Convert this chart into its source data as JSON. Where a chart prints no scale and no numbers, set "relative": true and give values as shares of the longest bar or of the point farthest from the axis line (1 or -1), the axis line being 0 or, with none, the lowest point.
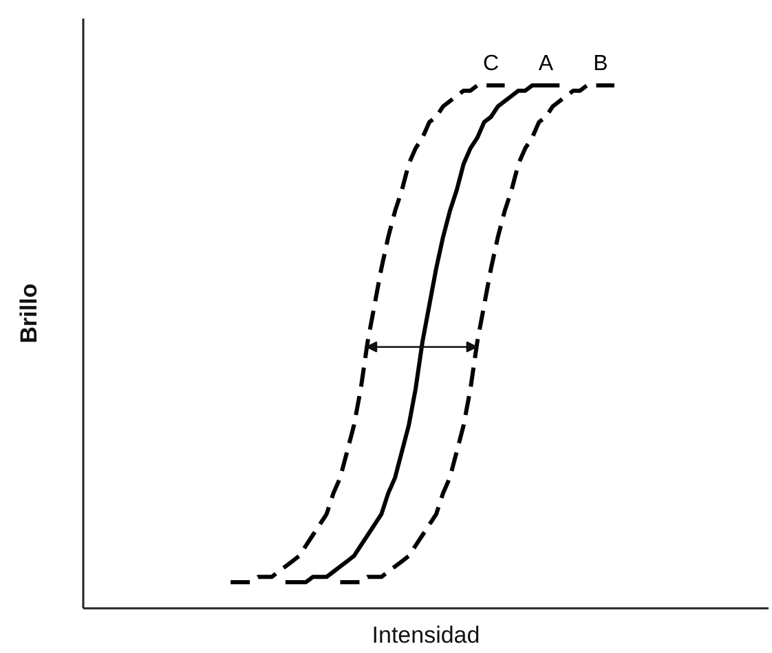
{
  "chart_data": {
    "type": "line",
    "xlabel": "Intensidad",
    "ylabel": "Brillo",
    "relative": true,
    "tick_labels": false,
    "categories": [
      null,
      null,
      null,
      null,
      null,
      null,
      null,
      null,
      null,
      null,
      null,
      null,
      null,
      null,
      null,
      null,
      null,
      null,
      null,
      null,
      null,
      null,
      null,
      null,
      null,
      null,
      null,
      null,
      null,
      null,
      null,
      null,
      null,
      null,
      null,
      null,
      null,
      null,
      null,
      null,
      null,
      null,
      null,
      null,
      null,
      null,
      null,
      null,
      null,
      null,
      null,
      null,
      null,
      null,
      null,
      null,
      null,
      null,
      null,
      null,
      null,
      null,
      null,
      null,
      null,
      null,
      null,
      null,
      null,
      null,
      null,
      null,
      null,
      null,
      null,
      null,
      null,
      null,
      null,
      null,
      null,
      null,
      null,
      null,
      null,
      null,
      null,
      null,
      null,
      null,
      null,
      null,
      null,
      null,
      null,
      null,
      null,
      null,
      null,
      null
    ],
    "series": [
      {
        "name": "C",
        "color": "#000000",
        "line_style": "dashed",
        "values": [
          null,
          null,
          null,
          null,
          null,
          null,
          null,
          null,
          null,
          null,
          null,
          null,
          null,
          null,
          null,
          null,
          null,
          null,
          null,
          null,
          null,
          0.05,
          0.05,
          0.05,
          0.05,
          0.06,
          0.06,
          0.06,
          0.07,
          0.08,
          0.09,
          0.1,
          0.12,
          0.14,
          0.16,
          0.18,
          0.22,
          0.25,
          0.3,
          0.35,
          0.42,
          0.51,
          0.58,
          0.65,
          0.71,
          0.76,
          0.8,
          0.85,
          0.88,
          0.9,
          0.93,
          0.94,
          0.96,
          0.97,
          0.98,
          0.99,
          0.99,
          1,
          1,
          1,
          1,
          1,
          null,
          null,
          null,
          null,
          null,
          null,
          null,
          null,
          null,
          null,
          null,
          null,
          null,
          null,
          null,
          null,
          null,
          null,
          null,
          null,
          null,
          null,
          null,
          null,
          null,
          null,
          null,
          null,
          null,
          null,
          null,
          null,
          null,
          null,
          null,
          null,
          null,
          null
        ]
      },
      {
        "name": "A",
        "color": "#000000",
        "line_style": "solid",
        "values": [
          null,
          null,
          null,
          null,
          null,
          null,
          null,
          null,
          null,
          null,
          null,
          null,
          null,
          null,
          null,
          null,
          null,
          null,
          null,
          null,
          null,
          null,
          null,
          null,
          null,
          null,
          null,
          null,
          null,
          0.05,
          0.05,
          0.05,
          0.05,
          0.06,
          0.06,
          0.06,
          0.07,
          0.08,
          0.09,
          0.1,
          0.12,
          0.14,
          0.16,
          0.18,
          0.22,
          0.25,
          0.3,
          0.35,
          0.42,
          0.51,
          0.58,
          0.65,
          0.71,
          0.76,
          0.8,
          0.85,
          0.88,
          0.9,
          0.93,
          0.94,
          0.96,
          0.97,
          0.98,
          0.99,
          0.99,
          1,
          1,
          1,
          1,
          1,
          null,
          null,
          null,
          null,
          null,
          null,
          null,
          null,
          null,
          null,
          null,
          null,
          null,
          null,
          null,
          null,
          null,
          null,
          null,
          null,
          null,
          null,
          null,
          null,
          null,
          null,
          null,
          null,
          null,
          null
        ]
      },
      {
        "name": "B",
        "color": "#000000",
        "line_style": "dashed",
        "values": [
          null,
          null,
          null,
          null,
          null,
          null,
          null,
          null,
          null,
          null,
          null,
          null,
          null,
          null,
          null,
          null,
          null,
          null,
          null,
          null,
          null,
          null,
          null,
          null,
          null,
          null,
          null,
          null,
          null,
          null,
          null,
          null,
          null,
          null,
          null,
          null,
          null,
          0.05,
          0.05,
          0.05,
          0.05,
          0.06,
          0.06,
          0.06,
          0.07,
          0.08,
          0.09,
          0.1,
          0.12,
          0.14,
          0.16,
          0.18,
          0.22,
          0.25,
          0.3,
          0.35,
          0.42,
          0.51,
          0.58,
          0.65,
          0.71,
          0.76,
          0.8,
          0.85,
          0.88,
          0.9,
          0.93,
          0.94,
          0.96,
          0.97,
          0.98,
          0.99,
          0.99,
          1,
          1,
          1,
          1,
          1,
          null,
          null,
          null,
          null,
          null,
          null,
          null,
          null,
          null,
          null,
          null,
          null,
          null,
          null,
          null,
          null,
          null,
          null,
          null,
          null,
          null,
          null
        ]
      }
    ]
  }
}
